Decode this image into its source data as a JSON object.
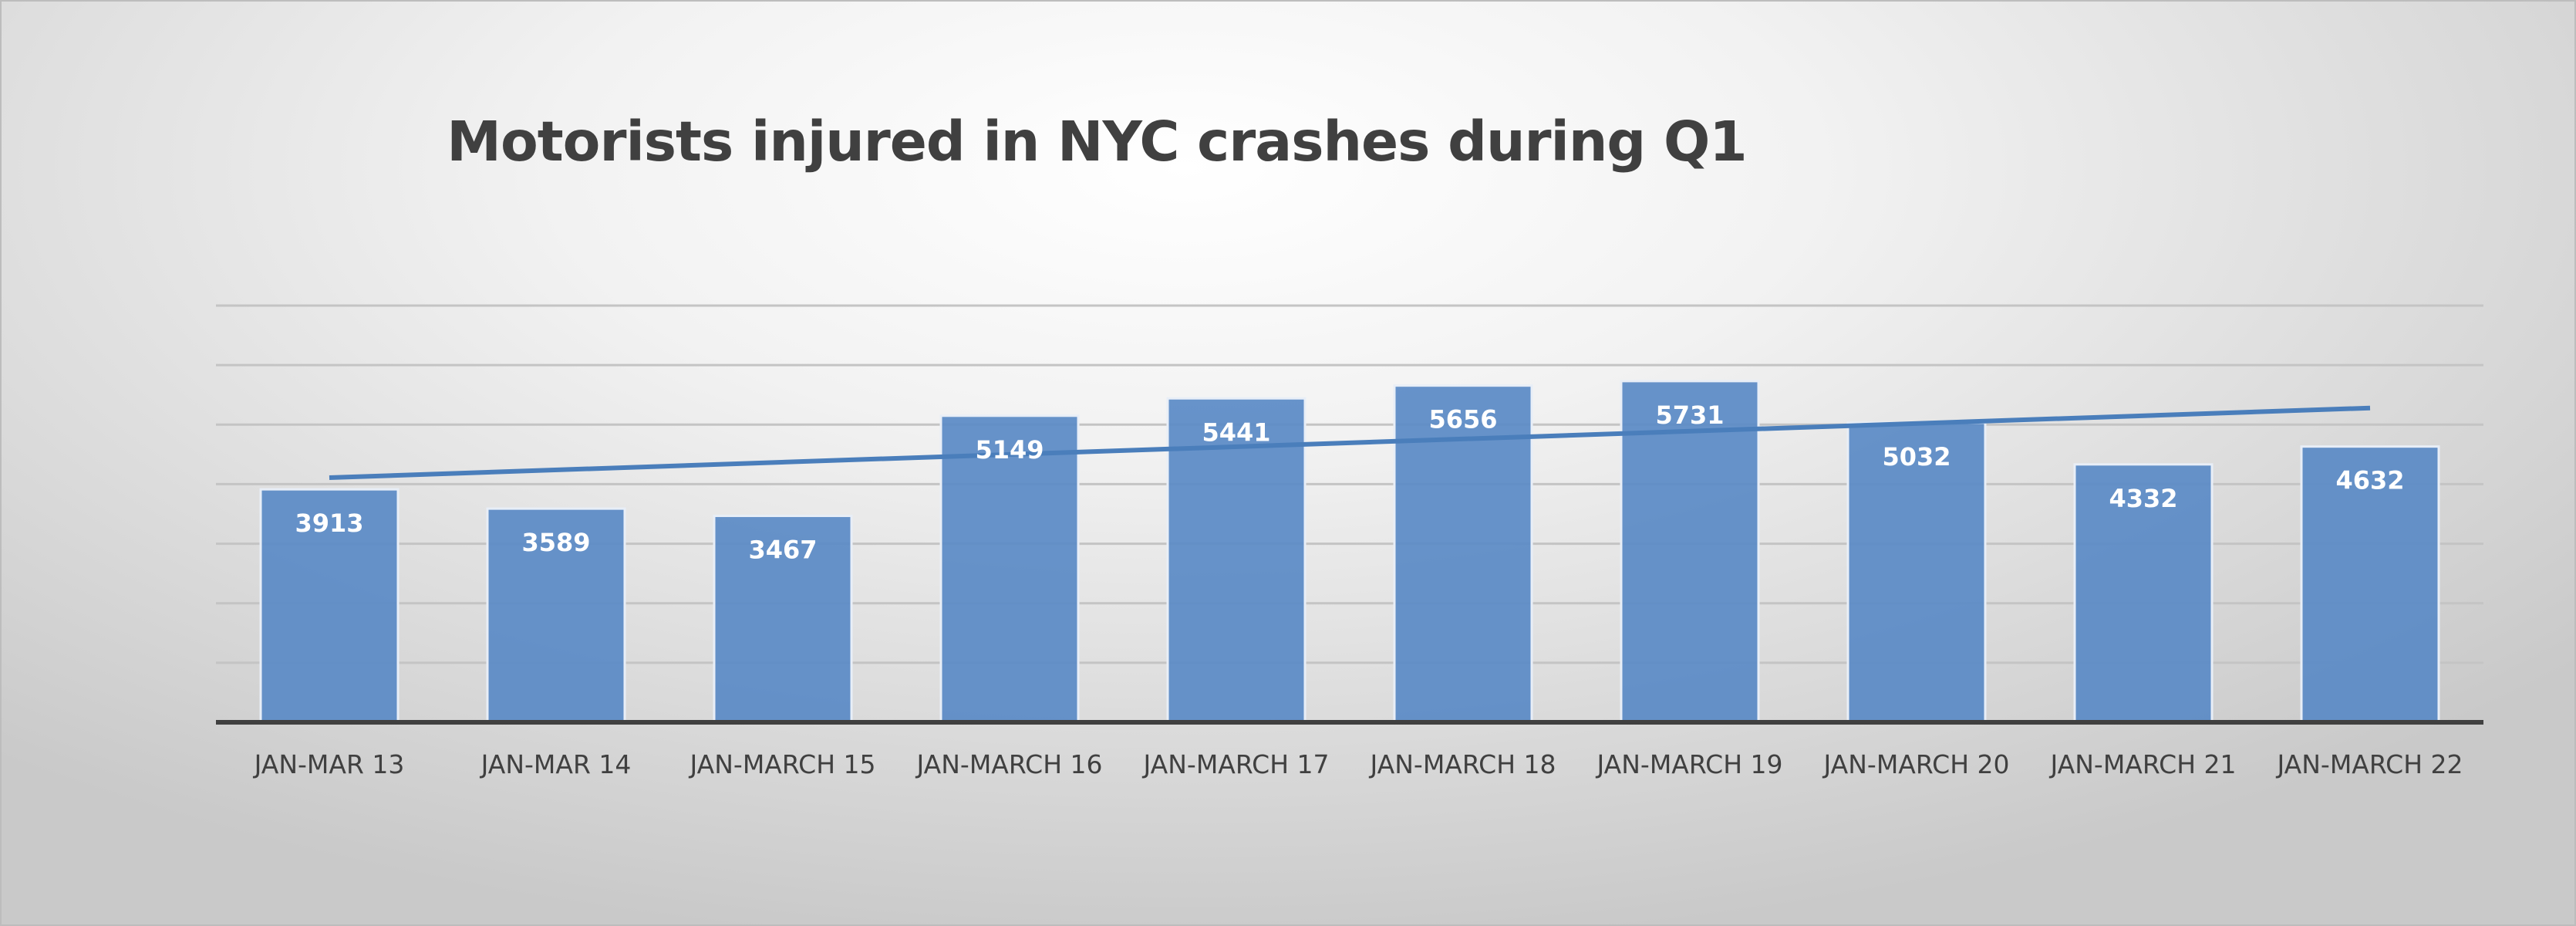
{
  "chart_data": {
    "type": "bar",
    "title": "Motorists injured in NYC crashes during Q1",
    "xlabel": "",
    "ylabel": "",
    "categories": [
      "JAN-MAR 13",
      "JAN-MAR 14",
      "JAN-MARCH 15",
      "JAN-MARCH 16",
      "JAN-MARCH 17",
      "JAN-MARCH 18",
      "JAN-MARCH 19",
      "JAN-MARCH 20",
      "JAN-MARCH 21",
      "JAN-MARCH 22"
    ],
    "values": [
      3913,
      3589,
      3467,
      5149,
      5441,
      5656,
      5731,
      5032,
      4332,
      4632
    ],
    "data_labels": [
      "3913",
      "3589",
      "3467",
      "5149",
      "5441",
      "5656",
      "5731",
      "5032",
      "4332",
      "4632"
    ],
    "ylim": [
      0,
      7000
    ],
    "y_grid_step": 1000,
    "grid": true,
    "y_tick_labels_shown": false,
    "legend": "none",
    "trendline": {
      "type": "linear"
    },
    "colors": {
      "bar": "#5a8ac6",
      "trendline": "#4a7ebb",
      "label": "#ffffff",
      "axis": "#404040"
    }
  }
}
